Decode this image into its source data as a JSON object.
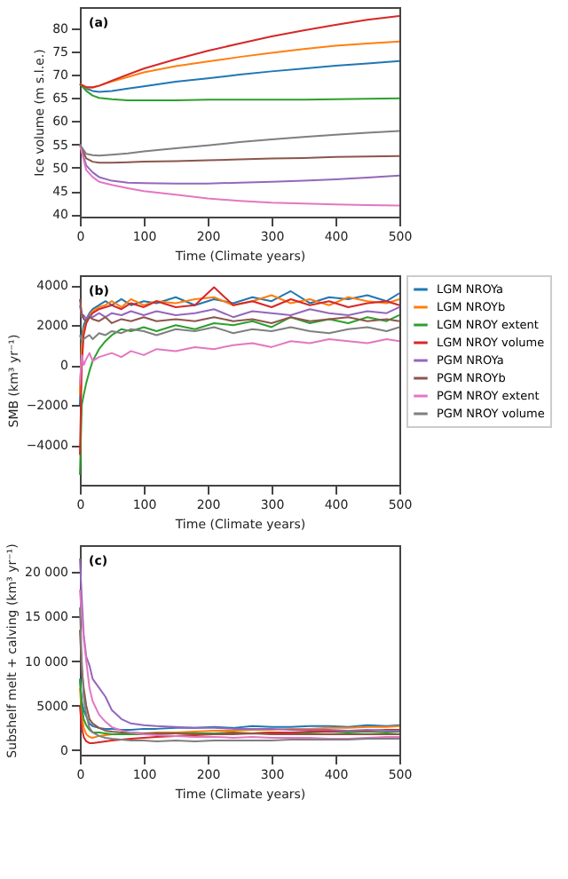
{
  "chart_data": [
    {
      "type": "line",
      "annotations": [
        "(a)"
      ],
      "xlabel": "Time (Climate years)",
      "ylabel": "Ice volume (m s.l.e.)",
      "xlim": [
        0,
        500
      ],
      "xticks": [
        0,
        100,
        200,
        300,
        400,
        500
      ],
      "ylim": [
        39.5,
        84.5
      ],
      "yticks": [
        40,
        45,
        50,
        55,
        60,
        65,
        70,
        75,
        80
      ],
      "grid": false,
      "legend": false,
      "x": [
        0,
        10,
        20,
        30,
        50,
        75,
        100,
        150,
        200,
        250,
        300,
        350,
        400,
        450,
        500
      ],
      "series": [
        {
          "color": "#1f77b4",
          "values": [
            68,
            67,
            66.5,
            66.3,
            66.5,
            67,
            67.5,
            68.5,
            69.2,
            70,
            70.7,
            71.3,
            71.9,
            72.4,
            72.9
          ]
        },
        {
          "color": "#ff7f0e",
          "values": [
            68,
            67.2,
            67.2,
            67.6,
            68.5,
            69.5,
            70.5,
            71.8,
            72.8,
            73.8,
            74.7,
            75.5,
            76.2,
            76.7,
            77.1
          ]
        },
        {
          "color": "#2ca02c",
          "values": [
            68,
            66.5,
            65.5,
            65,
            64.7,
            64.5,
            64.5,
            64.5,
            64.6,
            64.6,
            64.6,
            64.6,
            64.7,
            64.8,
            64.9
          ]
        },
        {
          "color": "#d62728",
          "values": [
            68,
            67.3,
            67.3,
            67.6,
            68.7,
            70,
            71.3,
            73.3,
            75.1,
            76.7,
            78.2,
            79.5,
            80.7,
            81.8,
            82.6
          ]
        },
        {
          "color": "#9467bd",
          "values": [
            55,
            50.5,
            49,
            48,
            47.2,
            46.8,
            46.7,
            46.6,
            46.6,
            46.8,
            47,
            47.2,
            47.5,
            47.9,
            48.3
          ]
        },
        {
          "color": "#8c564b",
          "values": [
            55,
            52,
            51.3,
            51.1,
            51.1,
            51.2,
            51.3,
            51.4,
            51.6,
            51.8,
            52,
            52.1,
            52.3,
            52.4,
            52.5
          ]
        },
        {
          "color": "#e377c2",
          "values": [
            55,
            49.5,
            48,
            47,
            46.3,
            45.6,
            45,
            44.2,
            43.4,
            42.9,
            42.5,
            42.3,
            42.1,
            42,
            41.9
          ]
        },
        {
          "color": "#7f7f7f",
          "values": [
            55,
            53,
            52.7,
            52.6,
            52.8,
            53.1,
            53.5,
            54.2,
            54.8,
            55.5,
            56.1,
            56.6,
            57.1,
            57.5,
            57.9
          ]
        }
      ]
    },
    {
      "type": "line",
      "annotations": [
        "(b)"
      ],
      "xlabel": "Time (Climate years)",
      "ylabel": "SMB (km³ yr⁻¹)",
      "xlim": [
        0,
        500
      ],
      "xticks": [
        0,
        100,
        200,
        300,
        400,
        500
      ],
      "ylim": [
        -6000,
        4500
      ],
      "yticks": [
        -4000,
        -2000,
        0,
        2000,
        4000
      ],
      "grid": false,
      "legend": "right",
      "x": [
        0,
        3,
        6,
        10,
        15,
        20,
        30,
        40,
        50,
        65,
        80,
        100,
        120,
        150,
        180,
        210,
        240,
        270,
        300,
        330,
        360,
        390,
        420,
        450,
        480,
        500
      ],
      "series": [
        {
          "name": "LGM NROYa",
          "color": "#1f77b4",
          "values": [
            -2000,
            1500,
            2000,
            2300,
            2600,
            2800,
            3000,
            3200,
            3000,
            3300,
            3000,
            3200,
            3100,
            3400,
            3000,
            3300,
            3100,
            3400,
            3200,
            3700,
            3100,
            3400,
            3300,
            3500,
            3200,
            3600
          ]
        },
        {
          "name": "LGM NROYb",
          "color": "#ff7f0e",
          "values": [
            -1500,
            1000,
            1800,
            2100,
            2500,
            2700,
            2900,
            3000,
            3200,
            2900,
            3300,
            3000,
            3200,
            3100,
            3300,
            3400,
            3000,
            3200,
            3500,
            3100,
            3300,
            3000,
            3400,
            3200,
            3100,
            3300
          ]
        },
        {
          "name": "LGM NROY extent",
          "color": "#2ca02c",
          "values": [
            -5500,
            -2000,
            -1500,
            -900,
            -300,
            200,
            800,
            1200,
            1500,
            1800,
            1700,
            1900,
            1700,
            2000,
            1800,
            2100,
            2000,
            2200,
            1900,
            2400,
            2100,
            2300,
            2100,
            2400,
            2200,
            2500
          ]
        },
        {
          "name": "LGM NROY volume",
          "color": "#d62728",
          "values": [
            -4500,
            0,
            1500,
            2100,
            2400,
            2600,
            2800,
            2900,
            3000,
            2800,
            3100,
            2900,
            3200,
            2900,
            3000,
            3900,
            3000,
            3200,
            2900,
            3300,
            3000,
            3200,
            2900,
            3100,
            3200,
            3000
          ]
        },
        {
          "name": "PGM NROYa",
          "color": "#9467bd",
          "values": [
            3000,
            2400,
            2500,
            2300,
            2500,
            2400,
            2600,
            2400,
            2600,
            2500,
            2700,
            2500,
            2700,
            2500,
            2600,
            2800,
            2400,
            2700,
            2600,
            2500,
            2800,
            2600,
            2500,
            2700,
            2600,
            2900
          ]
        },
        {
          "name": "PGM NROYb",
          "color": "#8c564b",
          "values": [
            3300,
            2600,
            2300,
            2200,
            2400,
            2300,
            2200,
            2400,
            2100,
            2300,
            2200,
            2400,
            2200,
            2300,
            2200,
            2400,
            2200,
            2300,
            2100,
            2400,
            2200,
            2300,
            2400,
            2200,
            2300,
            2200
          ]
        },
        {
          "name": "PGM NROY extent",
          "color": "#e377c2",
          "values": [
            -1000,
            500,
            0,
            300,
            600,
            200,
            400,
            500,
            600,
            400,
            700,
            500,
            800,
            700,
            900,
            800,
            1000,
            1100,
            900,
            1200,
            1100,
            1300,
            1200,
            1100,
            1300,
            1200
          ]
        },
        {
          "name": "PGM NROY volume",
          "color": "#7f7f7f",
          "values": [
            1500,
            1200,
            1300,
            1400,
            1500,
            1300,
            1600,
            1500,
            1700,
            1600,
            1800,
            1700,
            1500,
            1800,
            1700,
            1900,
            1600,
            1800,
            1700,
            1900,
            1700,
            1600,
            1800,
            1900,
            1700,
            1900
          ]
        }
      ]
    },
    {
      "type": "line",
      "annotations": [
        "(c)"
      ],
      "xlabel": "Time (Climate years)",
      "ylabel": "Subshelf melt + calving (km³ yr⁻¹)",
      "xlim": [
        0,
        500
      ],
      "xticks": [
        0,
        100,
        200,
        300,
        400,
        500
      ],
      "ylim": [
        -500,
        23000
      ],
      "yticks": [
        0,
        5000,
        {
          "value": 10000,
          "label": "10 000"
        },
        {
          "value": 15000,
          "label": "15 000"
        },
        {
          "value": 20000,
          "label": "20 000"
        }
      ],
      "grid": false,
      "legend": false,
      "x": [
        0,
        3,
        6,
        10,
        15,
        20,
        30,
        40,
        50,
        65,
        80,
        100,
        120,
        150,
        180,
        210,
        240,
        270,
        300,
        330,
        360,
        390,
        420,
        450,
        480,
        500
      ],
      "series": [
        {
          "color": "#1f77b4",
          "values": [
            8000,
            5500,
            4500,
            3800,
            3000,
            2700,
            2500,
            2400,
            2400,
            2300,
            2300,
            2400,
            2400,
            2500,
            2500,
            2600,
            2500,
            2700,
            2600,
            2600,
            2700,
            2700,
            2600,
            2800,
            2700,
            2800
          ]
        },
        {
          "color": "#ff7f0e",
          "values": [
            7000,
            4000,
            2500,
            1800,
            1500,
            1400,
            1600,
            1700,
            1800,
            1800,
            1900,
            1900,
            2000,
            2000,
            2100,
            2200,
            2200,
            2300,
            2300,
            2400,
            2400,
            2500,
            2500,
            2600,
            2600,
            2700
          ]
        },
        {
          "color": "#2ca02c",
          "values": [
            8000,
            5000,
            3500,
            2800,
            2300,
            2000,
            2000,
            1900,
            1800,
            1800,
            1800,
            1800,
            1800,
            1900,
            1900,
            1900,
            2000,
            1900,
            2000,
            2000,
            2000,
            2100,
            2000,
            2100,
            2000,
            2100
          ]
        },
        {
          "color": "#d62728",
          "values": [
            5000,
            2500,
            1500,
            1000,
            800,
            800,
            900,
            1000,
            1100,
            1200,
            1300,
            1400,
            1500,
            1600,
            1700,
            1800,
            1900,
            1900,
            2000,
            2000,
            2100,
            2100,
            2200,
            2200,
            2300,
            2300
          ]
        },
        {
          "color": "#9467bd",
          "values": [
            21500,
            17000,
            13000,
            10500,
            9500,
            8000,
            7000,
            6000,
            4500,
            3500,
            3000,
            2800,
            2700,
            2600,
            2500,
            2500,
            2400,
            2400,
            2400,
            2300,
            2300,
            2300,
            2200,
            2300,
            2200,
            2200
          ]
        },
        {
          "color": "#8c564b",
          "values": [
            13500,
            9000,
            7000,
            5000,
            3500,
            3000,
            2500,
            2200,
            2100,
            2000,
            2000,
            1900,
            1900,
            1900,
            1800,
            1800,
            1800,
            1900,
            1800,
            1800,
            1800,
            1800,
            1800,
            1800,
            1800,
            1800
          ]
        },
        {
          "color": "#e377c2",
          "values": [
            18000,
            15000,
            12500,
            10000,
            7000,
            5500,
            4000,
            3200,
            2600,
            2200,
            2000,
            1800,
            1700,
            1600,
            1500,
            1500,
            1400,
            1500,
            1400,
            1400,
            1400,
            1300,
            1300,
            1400,
            1500,
            1500
          ]
        },
        {
          "color": "#7f7f7f",
          "values": [
            16000,
            10000,
            6000,
            4000,
            2500,
            2000,
            1600,
            1400,
            1300,
            1200,
            1100,
            1100,
            1000,
            1100,
            1000,
            1100,
            1100,
            1100,
            1100,
            1200,
            1200,
            1200,
            1200,
            1300,
            1300,
            1300
          ]
        }
      ]
    }
  ]
}
